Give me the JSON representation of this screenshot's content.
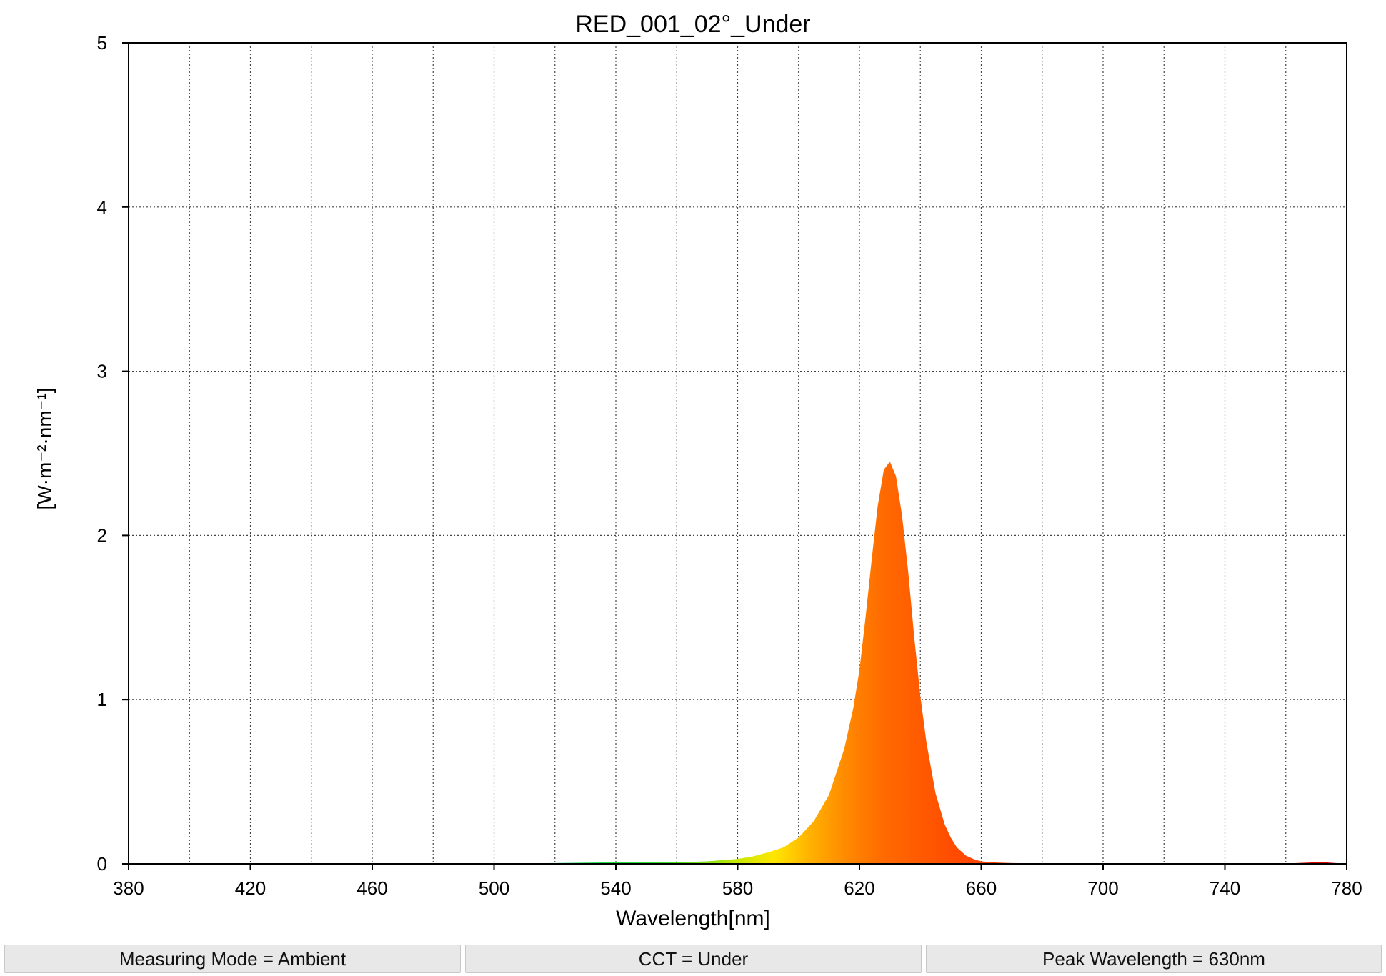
{
  "chart_data": {
    "type": "area",
    "title": "RED_001_02°_Under",
    "xlabel": "Wavelength[nm]",
    "ylabel": "[W·m⁻²·nm⁻¹]",
    "xlim": [
      380,
      780
    ],
    "ylim": [
      0,
      5
    ],
    "x_ticks": [
      380,
      420,
      460,
      500,
      540,
      580,
      620,
      660,
      700,
      740,
      780
    ],
    "y_ticks": [
      0,
      1,
      2,
      3,
      4,
      5
    ],
    "x_minor_grid_step": 20,
    "grid": true,
    "grid_style": "dotted",
    "fill": "visible-spectrum-colored area under curve",
    "series": [
      {
        "x": [
          380,
          500,
          520,
          540,
          560,
          570,
          580,
          585,
          590,
          595,
          600,
          605,
          610,
          615,
          618,
          620,
          622,
          624,
          626,
          628,
          630,
          632,
          634,
          636,
          638,
          640,
          642,
          645,
          648,
          650,
          652,
          655,
          658,
          660,
          665,
          670,
          680,
          700,
          740,
          760,
          770,
          772,
          774,
          780
        ],
        "y": [
          0,
          0,
          0.005,
          0.01,
          0.01,
          0.015,
          0.03,
          0.045,
          0.07,
          0.1,
          0.16,
          0.26,
          0.42,
          0.7,
          0.95,
          1.18,
          1.5,
          1.85,
          2.18,
          2.4,
          2.45,
          2.36,
          2.12,
          1.78,
          1.38,
          1.02,
          0.74,
          0.43,
          0.24,
          0.16,
          0.1,
          0.05,
          0.025,
          0.015,
          0.008,
          0.005,
          0.003,
          0.002,
          0.002,
          0.002,
          0.01,
          0.012,
          0.008,
          0
        ]
      }
    ]
  },
  "status_bar": {
    "measuring_mode": "Measuring Mode = Ambient",
    "cct": "CCT = Under",
    "peak_wavelength": "Peak Wavelength = 630nm"
  }
}
